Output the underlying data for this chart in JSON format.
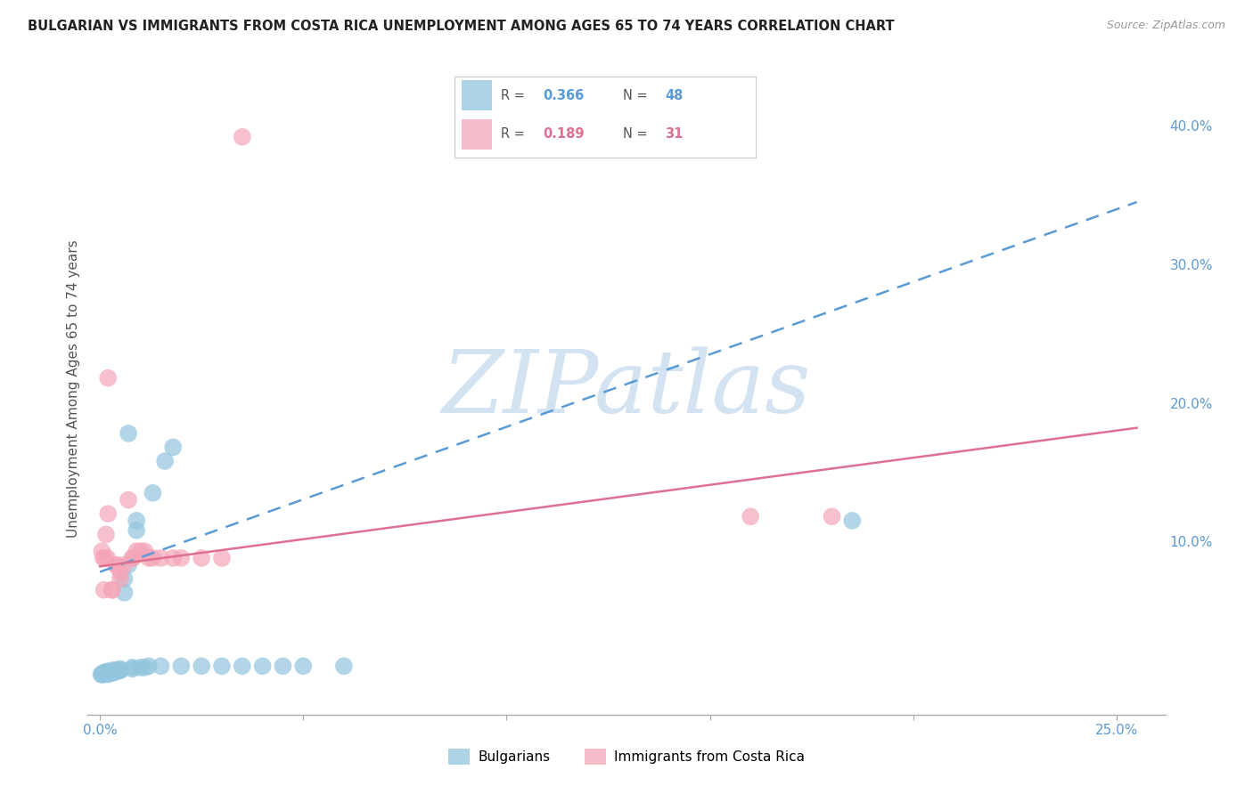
{
  "title": "BULGARIAN VS IMMIGRANTS FROM COSTA RICA UNEMPLOYMENT AMONG AGES 65 TO 74 YEARS CORRELATION CHART",
  "source": "Source: ZipAtlas.com",
  "ylabel": "Unemployment Among Ages 65 to 74 years",
  "xlim_min": -0.003,
  "xlim_max": 0.262,
  "ylim_min": -0.025,
  "ylim_max": 0.445,
  "blue_R": "0.366",
  "blue_N": "48",
  "pink_R": "0.189",
  "pink_N": "31",
  "blue_color": "#92c5de",
  "pink_color": "#f4a6b8",
  "blue_line_color": "#5b9bd5",
  "pink_line_color": "#e07090",
  "blue_line_style": "--",
  "pink_line_style": "-",
  "watermark_text": "ZIPatlas",
  "watermark_color": "#cfe0f0",
  "background_color": "#ffffff",
  "legend_border_color": "#cccccc",
  "blue_label": "Bulgarians",
  "pink_label": "Immigrants from Costa Rica",
  "blue_x": [
    0.0003,
    0.0005,
    0.0008,
    0.001,
    0.001,
    0.0012,
    0.0015,
    0.0015,
    0.002,
    0.002,
    0.002,
    0.0025,
    0.0025,
    0.003,
    0.003,
    0.003,
    0.0035,
    0.004,
    0.004,
    0.004,
    0.004,
    0.005,
    0.005,
    0.005,
    0.006,
    0.006,
    0.007,
    0.007,
    0.008,
    0.008,
    0.009,
    0.009,
    0.01,
    0.011,
    0.012,
    0.013,
    0.015,
    0.016,
    0.018,
    0.02,
    0.025,
    0.03,
    0.035,
    0.04,
    0.045,
    0.05,
    0.06,
    0.185
  ],
  "blue_y": [
    0.004,
    0.004,
    0.005,
    0.004,
    0.005,
    0.005,
    0.005,
    0.006,
    0.004,
    0.005,
    0.006,
    0.005,
    0.006,
    0.005,
    0.006,
    0.007,
    0.006,
    0.006,
    0.006,
    0.007,
    0.007,
    0.007,
    0.007,
    0.008,
    0.063,
    0.073,
    0.083,
    0.178,
    0.008,
    0.009,
    0.108,
    0.115,
    0.009,
    0.009,
    0.01,
    0.135,
    0.01,
    0.158,
    0.168,
    0.01,
    0.01,
    0.01,
    0.01,
    0.01,
    0.01,
    0.01,
    0.01,
    0.115
  ],
  "pink_x": [
    0.0005,
    0.001,
    0.0015,
    0.002,
    0.002,
    0.003,
    0.003,
    0.004,
    0.004,
    0.005,
    0.005,
    0.006,
    0.007,
    0.008,
    0.008,
    0.009,
    0.01,
    0.011,
    0.012,
    0.013,
    0.015,
    0.018,
    0.02,
    0.025,
    0.03,
    0.035,
    0.16,
    0.18,
    0.0008,
    0.0012,
    0.0018
  ],
  "pink_y": [
    0.093,
    0.065,
    0.105,
    0.12,
    0.218,
    0.065,
    0.065,
    0.083,
    0.083,
    0.073,
    0.078,
    0.083,
    0.13,
    0.088,
    0.088,
    0.093,
    0.093,
    0.093,
    0.088,
    0.088,
    0.088,
    0.088,
    0.088,
    0.088,
    0.088,
    0.392,
    0.118,
    0.118,
    0.088,
    0.088,
    0.088
  ],
  "blue_trend_x0": 0.0,
  "blue_trend_x1": 0.255,
  "blue_trend_y0": 0.078,
  "blue_trend_y1": 0.345,
  "pink_trend_x0": 0.0,
  "pink_trend_x1": 0.255,
  "pink_trend_y0": 0.082,
  "pink_trend_y1": 0.182
}
